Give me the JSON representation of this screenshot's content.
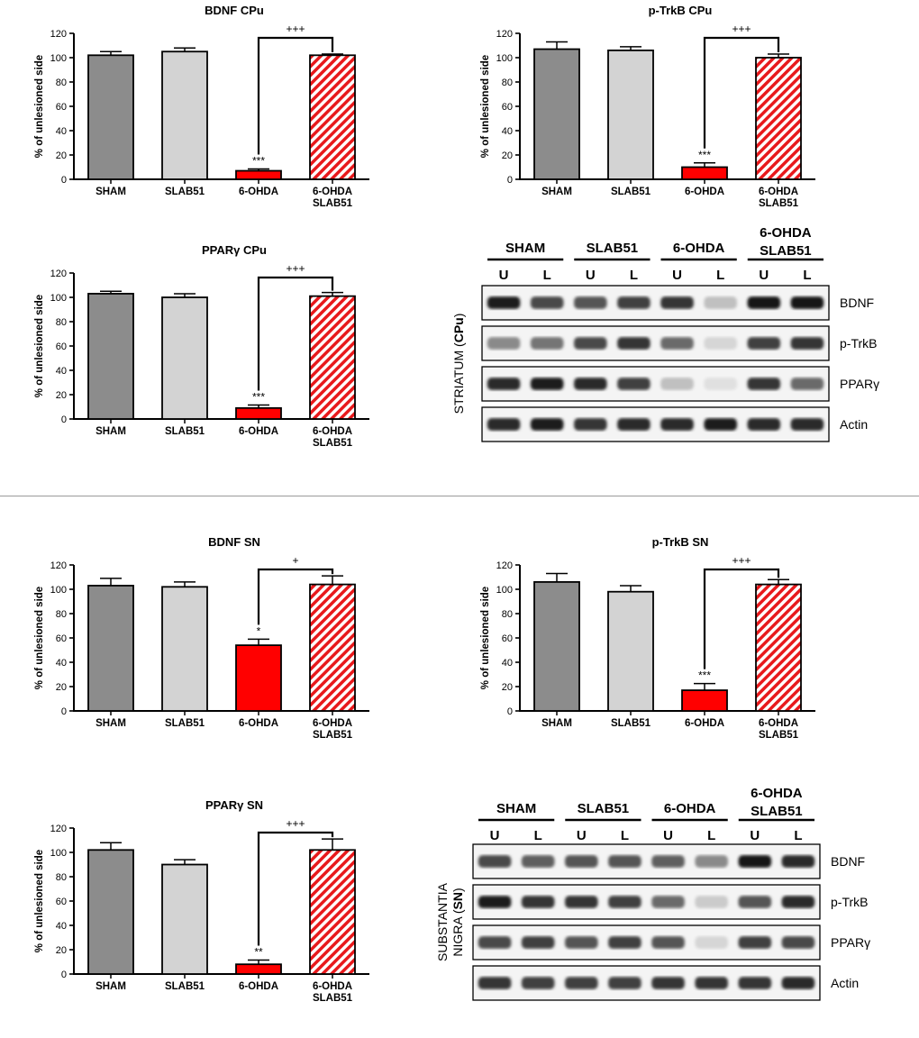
{
  "colors": {
    "sham": "#8c8c8c",
    "slab51": "#d3d3d3",
    "ohda": "#ff0000",
    "hatch_red": "#e8191c",
    "axis": "#000000"
  },
  "chart_data": [
    {
      "type": "bar",
      "title": "BDNF CPu",
      "ylabel": "% of unlesioned side",
      "ylim": [
        0,
        120
      ],
      "yticks": [
        "0",
        "20",
        "40",
        "60",
        "80",
        "100",
        "120"
      ],
      "categories": [
        "SHAM",
        "SLAB51",
        "6-OHDA",
        "6-OHDA\nSLAB51"
      ],
      "category_lines": [
        [
          "SHAM"
        ],
        [
          "SLAB51"
        ],
        [
          "6-OHDA"
        ],
        [
          "6-OHDA",
          "SLAB51"
        ]
      ],
      "values": [
        102,
        105,
        7,
        102
      ],
      "errors": [
        3,
        3,
        1.5,
        1
      ],
      "annotations": [
        {
          "bar": 2,
          "text": "***"
        }
      ],
      "bracket": {
        "from": 2,
        "to": 3,
        "text": "+++"
      }
    },
    {
      "type": "bar",
      "title": "p-TrkB CPu",
      "ylabel": "% of unlesioned side",
      "ylim": [
        0,
        120
      ],
      "yticks": [
        "0",
        "20",
        "40",
        "60",
        "80",
        "100",
        "120"
      ],
      "categories": [
        "SHAM",
        "SLAB51",
        "6-OHDA",
        "6-OHDA\nSLAB51"
      ],
      "category_lines": [
        [
          "SHAM"
        ],
        [
          "SLAB51"
        ],
        [
          "6-OHDA"
        ],
        [
          "6-OHDA",
          "SLAB51"
        ]
      ],
      "values": [
        107,
        106,
        10,
        100
      ],
      "errors": [
        6,
        3,
        3.5,
        3
      ],
      "annotations": [
        {
          "bar": 2,
          "text": "***"
        }
      ],
      "bracket": {
        "from": 2,
        "to": 3,
        "text": "+++"
      }
    },
    {
      "type": "bar",
      "title": "PPARγ CPu",
      "ylabel": "% of unlesioned side",
      "ylim": [
        0,
        120
      ],
      "yticks": [
        "0",
        "20",
        "40",
        "60",
        "80",
        "100",
        "120"
      ],
      "categories": [
        "SHAM",
        "SLAB51",
        "6-OHDA",
        "6-OHDA\nSLAB51"
      ],
      "category_lines": [
        [
          "SHAM"
        ],
        [
          "SLAB51"
        ],
        [
          "6-OHDA"
        ],
        [
          "6-OHDA",
          "SLAB51"
        ]
      ],
      "values": [
        103,
        100,
        9,
        101
      ],
      "errors": [
        2,
        3,
        2.5,
        3
      ],
      "annotations": [
        {
          "bar": 2,
          "text": "***"
        }
      ],
      "bracket": {
        "from": 2,
        "to": 3,
        "text": "+++"
      }
    },
    {
      "type": "bar",
      "title": "BDNF SN",
      "ylabel": "% of unlesioned side",
      "ylim": [
        0,
        120
      ],
      "yticks": [
        "0",
        "20",
        "40",
        "60",
        "80",
        "100",
        "120"
      ],
      "categories": [
        "SHAM",
        "SLAB51",
        "6-OHDA",
        "6-OHDA\nSLAB51"
      ],
      "category_lines": [
        [
          "SHAM"
        ],
        [
          "SLAB51"
        ],
        [
          "6-OHDA"
        ],
        [
          "6-OHDA",
          "SLAB51"
        ]
      ],
      "values": [
        103,
        102,
        54,
        104
      ],
      "errors": [
        6,
        4,
        5,
        7
      ],
      "annotations": [
        {
          "bar": 2,
          "text": "*"
        }
      ],
      "bracket": {
        "from": 2,
        "to": 3,
        "text": "+"
      }
    },
    {
      "type": "bar",
      "title": "p-TrkB SN",
      "ylabel": "% of unlesioned side",
      "ylim": [
        0,
        120
      ],
      "yticks": [
        "0",
        "20",
        "40",
        "60",
        "80",
        "100",
        "120"
      ],
      "categories": [
        "SHAM",
        "SLAB51",
        "6-OHDA",
        "6-OHDA\nSLAB51"
      ],
      "category_lines": [
        [
          "SHAM"
        ],
        [
          "SLAB51"
        ],
        [
          "6-OHDA"
        ],
        [
          "6-OHDA",
          "SLAB51"
        ]
      ],
      "values": [
        106,
        98,
        17,
        104
      ],
      "errors": [
        7,
        5,
        5.5,
        4
      ],
      "annotations": [
        {
          "bar": 2,
          "text": "***"
        }
      ],
      "bracket": {
        "from": 2,
        "to": 3,
        "text": "+++"
      }
    },
    {
      "type": "bar",
      "title": "PPARγ SN",
      "ylabel": "% of unlesioned side",
      "ylim": [
        0,
        120
      ],
      "yticks": [
        "0",
        "20",
        "40",
        "60",
        "80",
        "100",
        "120"
      ],
      "categories": [
        "SHAM",
        "SLAB51",
        "6-OHDA",
        "6-OHDA\nSLAB51"
      ],
      "category_lines": [
        [
          "SHAM"
        ],
        [
          "SLAB51"
        ],
        [
          "6-OHDA"
        ],
        [
          "6-OHDA",
          "SLAB51"
        ]
      ],
      "values": [
        102,
        90,
        8,
        102
      ],
      "errors": [
        6,
        4,
        3.5,
        9
      ],
      "annotations": [
        {
          "bar": 2,
          "text": "**"
        }
      ],
      "bracket": {
        "from": 2,
        "to": 3,
        "text": "+++"
      }
    }
  ],
  "blots": [
    {
      "region_label": [
        "STRIATUM (",
        "CPu",
        ")"
      ],
      "groups": [
        [
          "SHAM"
        ],
        [
          "SLAB51"
        ],
        [
          "6-OHDA"
        ],
        [
          "6-OHDA",
          "SLAB51"
        ]
      ],
      "lanes": [
        "U",
        "L",
        "U",
        "L",
        "U",
        "L",
        "U",
        "L"
      ],
      "rows": [
        {
          "name": "BDNF",
          "intensity": [
            0.95,
            0.75,
            0.7,
            0.8,
            0.85,
            0.2,
            1.0,
            1.0
          ]
        },
        {
          "name": "p-TrkB",
          "intensity": [
            0.45,
            0.55,
            0.75,
            0.85,
            0.6,
            0.1,
            0.8,
            0.85
          ]
        },
        {
          "name": "PPARγ",
          "intensity": [
            0.9,
            0.95,
            0.9,
            0.8,
            0.2,
            0.05,
            0.85,
            0.6
          ]
        },
        {
          "name": "Actin",
          "intensity": [
            0.9,
            0.95,
            0.85,
            0.9,
            0.9,
            0.95,
            0.9,
            0.9
          ]
        }
      ]
    },
    {
      "region_label": [
        "SUBSTANTIA",
        "NIGRA (",
        "SN",
        ")"
      ],
      "groups": [
        [
          "SHAM"
        ],
        [
          "SLAB51"
        ],
        [
          "6-OHDA"
        ],
        [
          "6-OHDA",
          "SLAB51"
        ]
      ],
      "lanes": [
        "U",
        "L",
        "U",
        "L",
        "U",
        "L",
        "U",
        "L"
      ],
      "rows": [
        {
          "name": "BDNF",
          "intensity": [
            0.75,
            0.65,
            0.7,
            0.7,
            0.65,
            0.45,
            1.0,
            0.9
          ]
        },
        {
          "name": "p-TrkB",
          "intensity": [
            0.95,
            0.85,
            0.85,
            0.8,
            0.6,
            0.15,
            0.7,
            0.9
          ]
        },
        {
          "name": "PPARγ",
          "intensity": [
            0.75,
            0.8,
            0.7,
            0.8,
            0.7,
            0.1,
            0.8,
            0.75
          ]
        },
        {
          "name": "Actin",
          "intensity": [
            0.85,
            0.8,
            0.8,
            0.8,
            0.85,
            0.85,
            0.85,
            0.9
          ]
        }
      ]
    }
  ]
}
